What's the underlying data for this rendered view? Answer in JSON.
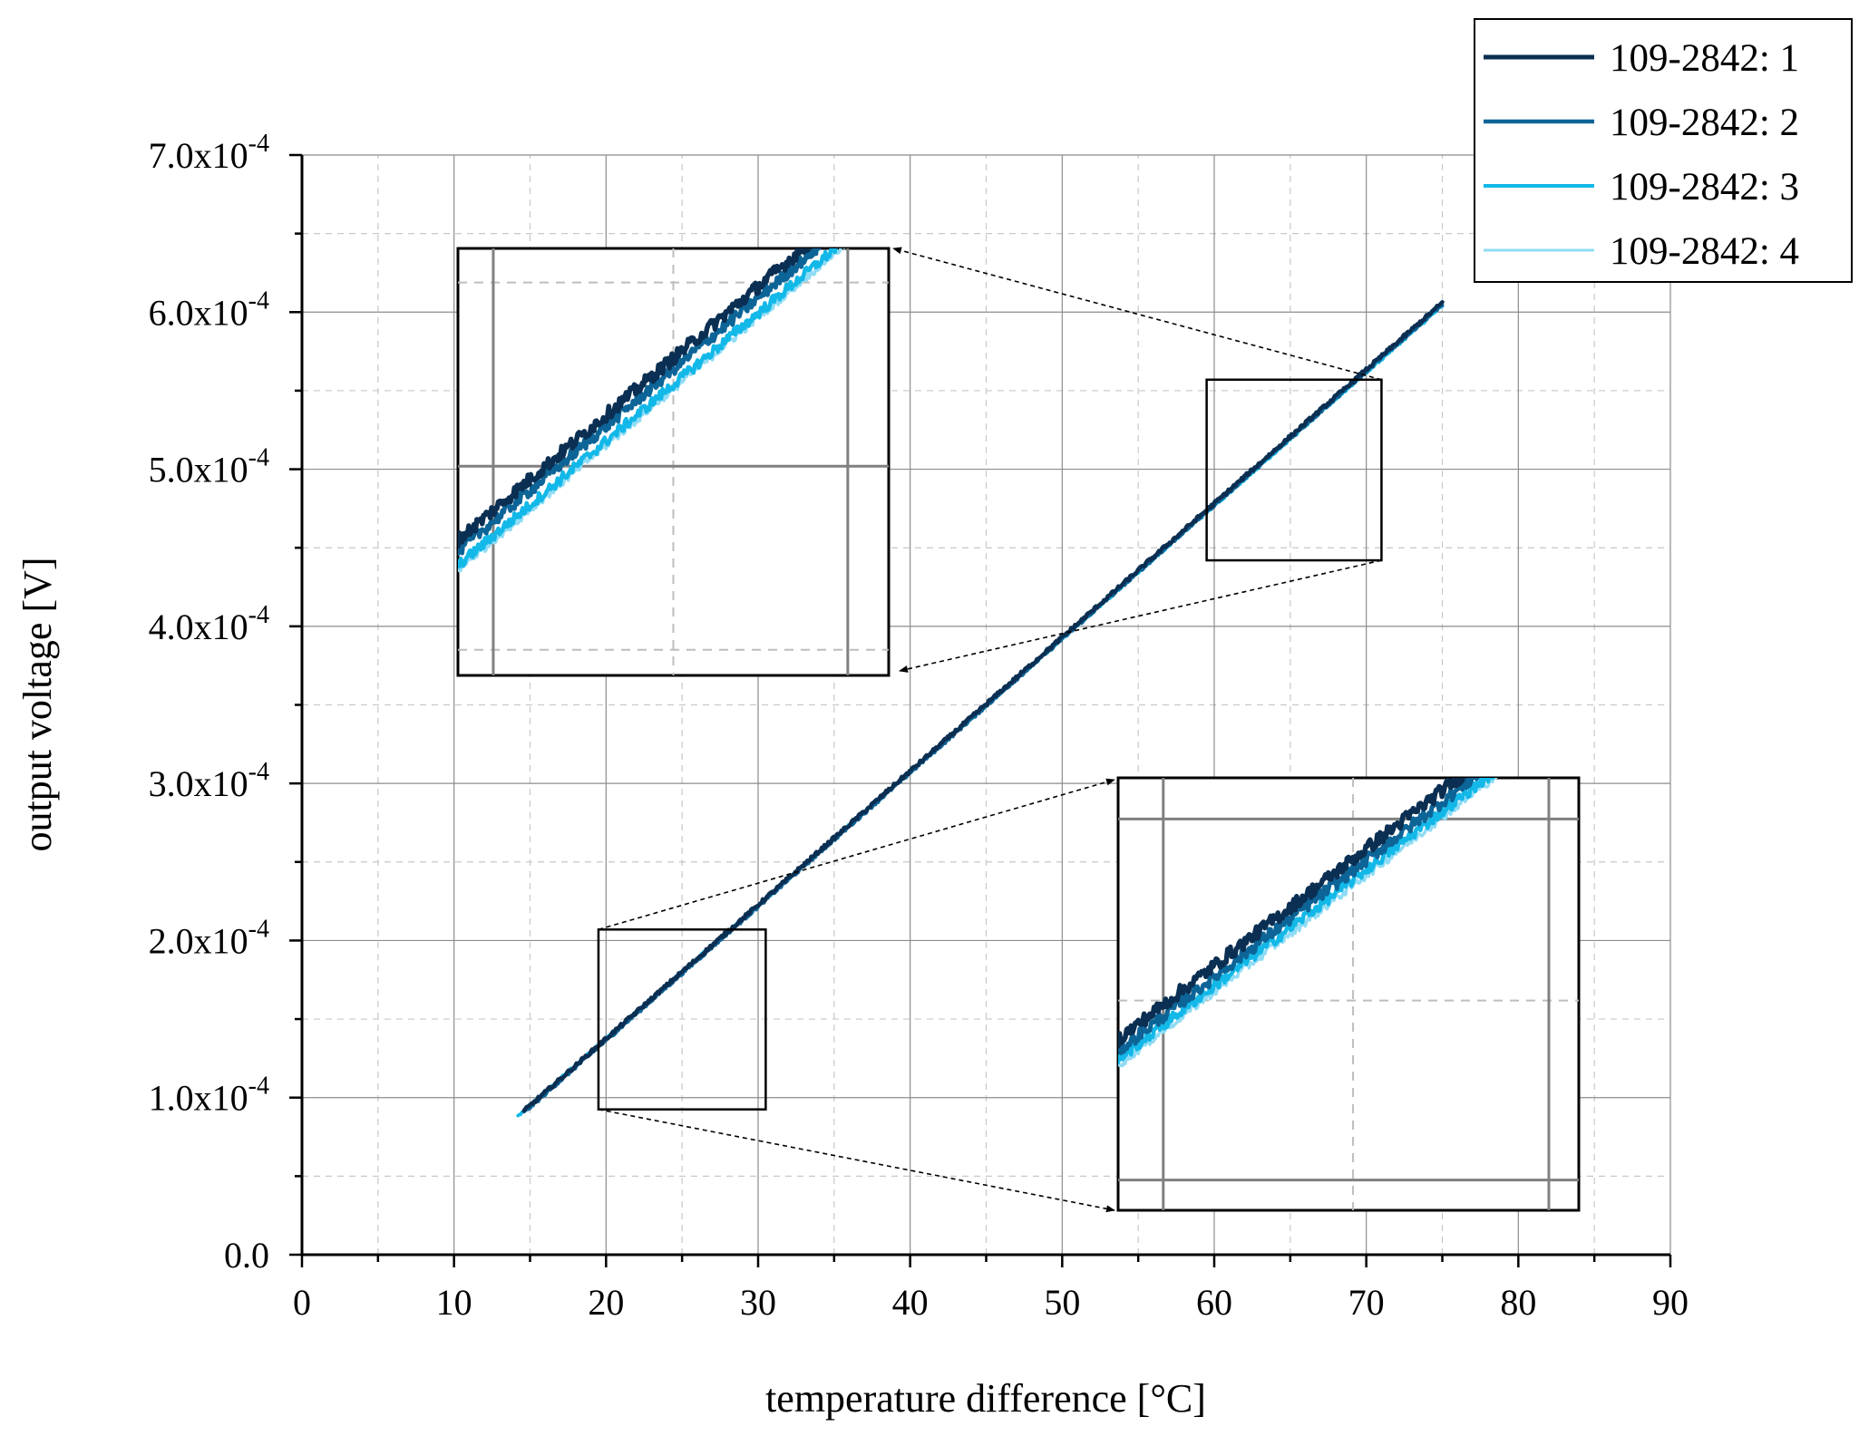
{
  "chart_data": {
    "type": "line",
    "title": "",
    "xlabel": "temperature difference [°C]",
    "ylabel": "output voltage [V]",
    "xlim": [
      0,
      90
    ],
    "ylim": [
      0,
      0.0007
    ],
    "x_ticks": [
      0,
      10,
      20,
      30,
      40,
      50,
      60,
      70,
      80,
      90
    ],
    "x_tick_labels": [
      "0",
      "10",
      "20",
      "30",
      "40",
      "50",
      "60",
      "70",
      "80",
      "90"
    ],
    "y_ticks": [
      0,
      0.0001,
      0.0002,
      0.0003,
      0.0004,
      0.0005,
      0.0006,
      0.0007
    ],
    "y_tick_labels": [
      {
        "mantissa": "0.0",
        "exponent": ""
      },
      {
        "mantissa": "1.0x10",
        "exponent": "-4"
      },
      {
        "mantissa": "2.0x10",
        "exponent": "-4"
      },
      {
        "mantissa": "3.0x10",
        "exponent": "-4"
      },
      {
        "mantissa": "4.0x10",
        "exponent": "-4"
      },
      {
        "mantissa": "5.0x10",
        "exponent": "-4"
      },
      {
        "mantissa": "6.0x10",
        "exponent": "-4"
      },
      {
        "mantissa": "7.0x10",
        "exponent": "-4"
      }
    ],
    "grid": true,
    "legend_position": "top-right",
    "series": [
      {
        "name": "109-2842: 1",
        "color": "#0b2f52",
        "x": [
          14.6,
          75.0
        ],
        "y": [
          9.15e-05,
          0.000606
        ]
      },
      {
        "name": "109-2842: 2",
        "color": "#0d6497",
        "x": [
          14.6,
          75.0
        ],
        "y": [
          9.05e-05,
          0.000605
        ]
      },
      {
        "name": "109-2842: 3",
        "color": "#12b8e8",
        "x": [
          14.2,
          75.0
        ],
        "y": [
          8.85e-05,
          0.000604
        ]
      },
      {
        "name": "109-2842: 4",
        "color": "#8fdcf5",
        "x": [
          14.2,
          75.0
        ],
        "y": [
          8.8e-05,
          0.000604
        ]
      }
    ],
    "zoom_regions": [
      {
        "name": "upper-zoom",
        "x_range": [
          59.5,
          71.0
        ],
        "y_range": [
          0.000442,
          0.000557
        ]
      },
      {
        "name": "lower-zoom",
        "x_range": [
          19.5,
          30.5
        ],
        "y_range": [
          9.25e-05,
          0.000207
        ]
      }
    ],
    "annotations": [
      "Magnified inset of 60–70 °C region (upper-left)",
      "Magnified inset of 20–30 °C region (lower-right)"
    ]
  }
}
